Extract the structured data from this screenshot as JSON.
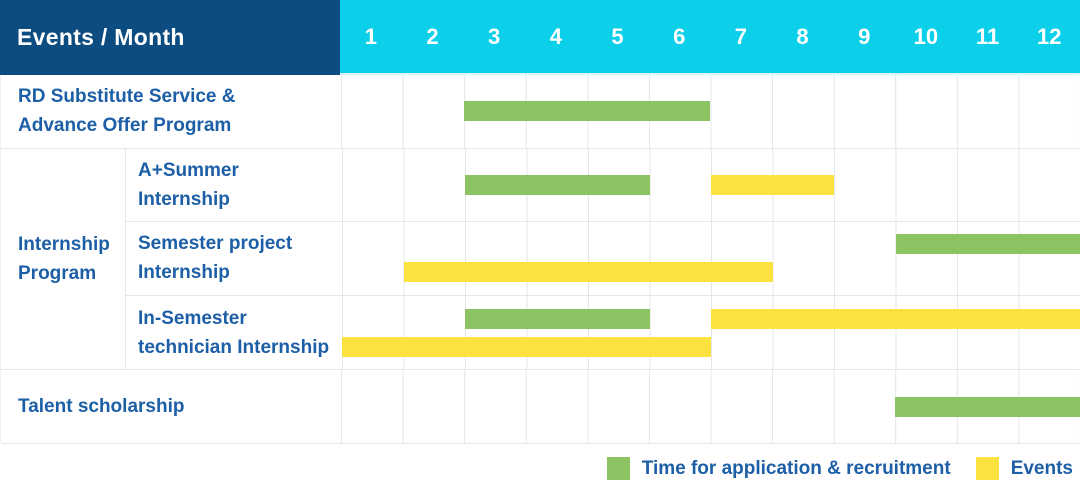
{
  "header": {
    "title": "Events / Month",
    "months": [
      "1",
      "2",
      "3",
      "4",
      "5",
      "6",
      "7",
      "8",
      "9",
      "10",
      "11",
      "12"
    ]
  },
  "colors": {
    "header_bg": "#0d4c80",
    "months_bg": "#0cd0ea",
    "application_green": "#8cc464",
    "events_yellow": "#fce23e",
    "label_text": "#1d5fa6",
    "grid_line": "#e4e7ea"
  },
  "legend": {
    "items": [
      {
        "key": "application",
        "color": "#8cc464",
        "label": "Time for application & recruitment"
      },
      {
        "key": "events",
        "color": "#fce23e",
        "label": "Events"
      }
    ]
  },
  "chart_data": {
    "type": "bar",
    "variant": "gantt",
    "title": "Events / Month",
    "xlabel": "Month",
    "x_ticks": [
      1,
      2,
      3,
      4,
      5,
      6,
      7,
      8,
      9,
      10,
      11,
      12
    ],
    "x_range": [
      1,
      12
    ],
    "grid": true,
    "legend_position": "bottom-right",
    "legend": {
      "green": "Time for application & recruitment",
      "yellow": "Events"
    },
    "groups": {
      "internship": {
        "label": "Internship Program",
        "lines": [
          "Internship",
          "Program"
        ]
      }
    },
    "rows": [
      {
        "label": "RD Substitute Service & Advance Offer Program",
        "lines": [
          "RD Substitute Service &",
          "Advance Offer Program"
        ],
        "lanes": [
          [
            {
              "kind": "application-recruitment",
              "color": "green",
              "start_month": 3,
              "end_month": 6
            }
          ]
        ]
      },
      {
        "label": "A+Summer Internship",
        "lines": [
          "A+Summer",
          "Internship"
        ],
        "group": "internship",
        "lanes": [
          [
            {
              "kind": "application-recruitment",
              "color": "green",
              "start_month": 3,
              "end_month": 5
            },
            {
              "kind": "event",
              "color": "yellow",
              "start_month": 7,
              "end_month": 8
            }
          ]
        ]
      },
      {
        "label": "Semester project Internship",
        "lines": [
          "Semester project",
          "Internship"
        ],
        "group": "internship",
        "lanes": [
          [
            {
              "kind": "application-recruitment",
              "color": "green",
              "start_month": 10,
              "end_month": 12
            }
          ],
          [
            {
              "kind": "event",
              "color": "yellow",
              "start_month": 2,
              "end_month": 7
            }
          ]
        ]
      },
      {
        "label": "In-Semester technician Internship",
        "lines": [
          "In-Semester",
          "technician Internship"
        ],
        "group": "internship",
        "lanes": [
          [
            {
              "kind": "application-recruitment",
              "color": "green",
              "start_month": 3,
              "end_month": 5
            },
            {
              "kind": "event",
              "color": "yellow",
              "start_month": 7,
              "end_month": 12
            }
          ],
          [
            {
              "kind": "event",
              "color": "yellow",
              "start_month": 1,
              "end_month": 6
            }
          ]
        ]
      },
      {
        "label": "Talent scholarship",
        "lines": [
          "Talent scholarship"
        ],
        "lanes": [
          [
            {
              "kind": "application-recruitment",
              "color": "green",
              "start_month": 10,
              "end_month": 12
            }
          ]
        ]
      }
    ]
  }
}
